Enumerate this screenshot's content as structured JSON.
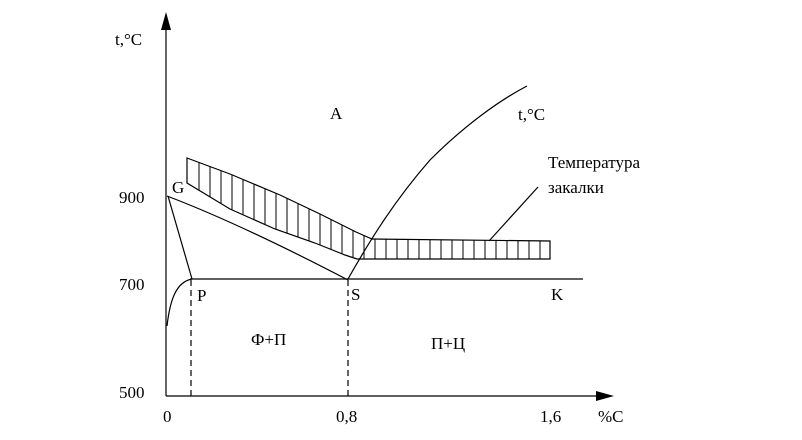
{
  "diagram": {
    "y_axis_label": "t,°C",
    "x_axis_label": "%C",
    "y_ticks": {
      "t900": "900",
      "t700": "700",
      "t500": "500"
    },
    "x_ticks": {
      "x0": "0",
      "x08": "0,8",
      "x16": "1,6"
    },
    "points": {
      "G": "G",
      "P": "P",
      "S": "S",
      "K": "K"
    },
    "regions": {
      "austenite": "A",
      "ferrite_pearlite": "Ф+П",
      "pearlite_cementite": "П+Ц"
    },
    "curve_label": "t,°C",
    "annotation": {
      "line1": "Температура",
      "line2": "закалки"
    }
  }
}
